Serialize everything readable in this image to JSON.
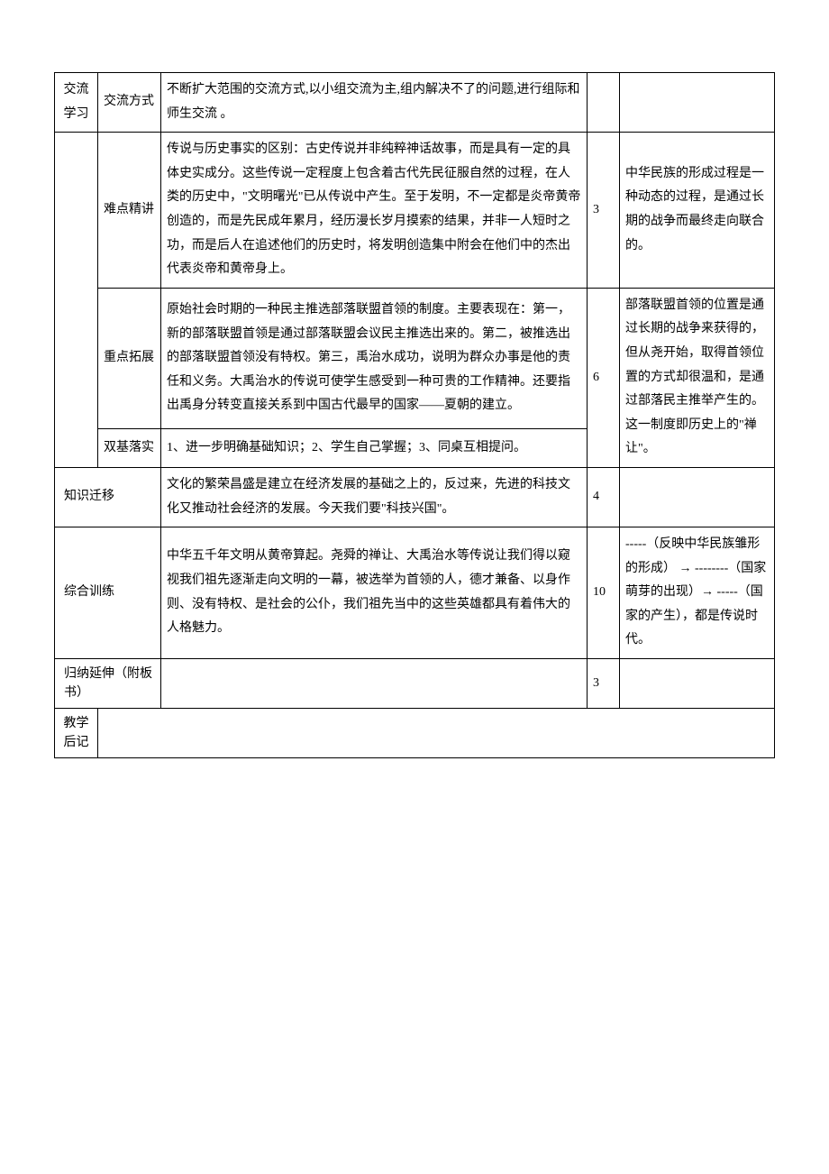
{
  "rows": {
    "r0": {
      "c0": "交流学习",
      "c1": "交流方式",
      "c2": "不断扩大范围的交流方式,以小组交流为主,组内解决不了的问题,进行组际和师生交流 。",
      "c3": "",
      "c4": ""
    },
    "r1": {
      "c0": "",
      "c1": "难点精讲",
      "c2": "传说与历史事实的区别：古史传说并非纯粹神话故事，而是具有一定的具体史实成分。这些传说一定程度上包含着古代先民征服自然的过程，在人类的历史中，\"文明曙光\"已从传说中产生。至于发明，不一定都是炎帝黄帝创造的，而是先民成年累月，经历漫长岁月摸索的结果，并非一人短时之功，而是后人在追述他们的历史时，将发明创造集中附会在他们中的杰出代表炎帝和黄帝身上。",
      "c3": "3",
      "c4": "中华民族的形成过程是一种动态的过程，是通过长期的战争而最终走向联合的。"
    },
    "r2": {
      "c1": "重点拓展",
      "c2": "原始社会时期的一种民主推选部落联盟首领的制度。主要表现在：第一，新的部落联盟首领是通过部落联盟会议民主推选出来的。第二，被推选出的部落联盟首领没有特权。第三，禹治水成功，说明为群众办事是他的责任和义务。大禹治水的传说可使学生感受到一种可贵的工作精神。还要指出禹身分转变直接关系到中国古代最早的国家——夏朝的建立。",
      "c3": "6",
      "c4": "部落联盟首领的位置是通过长期的战争来获得的，但从尧开始，取得首领位置的方式却很温和，是通过部落民主推举产生的。这一制度即历史上的\"禅让\"。"
    },
    "r3": {
      "c1": "双基落实",
      "c2": "1、进一步明确基础知识；2、学生自己掌握；3、同桌互相提问。"
    },
    "r4": {
      "c01": "知识迁移",
      "c2": "文化的繁荣昌盛是建立在经济发展的基础之上的，反过来，先进的科技文化又推动社会经济的发展。今天我们要\"科技兴国\"。",
      "c3": "4",
      "c4": ""
    },
    "r5": {
      "c01": "综合训练",
      "c2": "中华五千年文明从黄帝算起。尧舜的禅让、大禹治水等传说让我们得以窥视我们祖先逐渐走向文明的一幕，被选举为首领的人，德才兼备、以身作则、没有特权、是社会的公仆，我们祖先当中的这些英雄都具有着伟大的人格魅力。",
      "c3": "10",
      "c4": "-----（反映中华民族雏形的形成）  → --------（国家萌芽的出现）→     -----（国家的产生），都是传说时代。"
    },
    "r6": {
      "c01": "归纳延伸（附板书）",
      "c2": "",
      "c3": "3",
      "c4": ""
    },
    "r7": {
      "c0": "教学后记",
      "rest": ""
    }
  }
}
